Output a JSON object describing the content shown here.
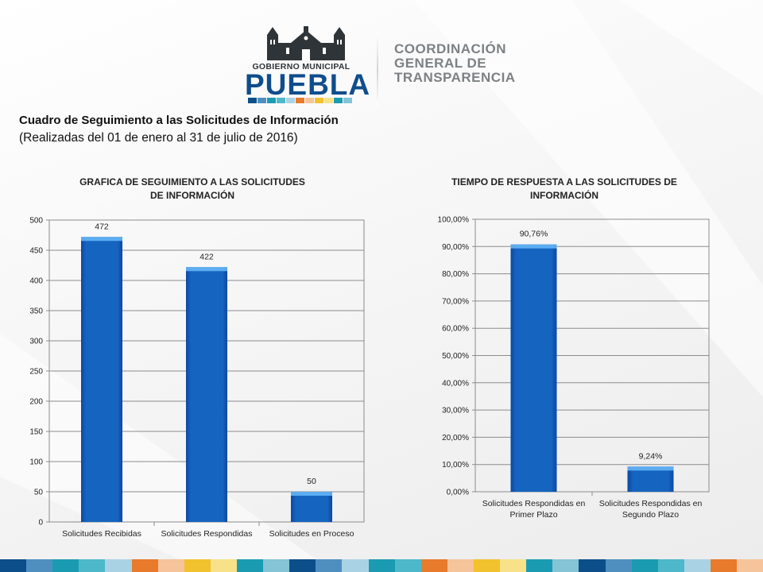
{
  "header": {
    "gov_label": "GOBIERNO MUNICIPAL",
    "brand": "PUEBLA",
    "org_lines": [
      "COORDINACIÓN",
      "GENERAL DE",
      "TRANSPARENCIA"
    ],
    "palette": [
      "#0b4e8a",
      "#4f8fc0",
      "#1a9bb2",
      "#4db8c9",
      "#a9d3e4",
      "#e87a2b",
      "#f5c49a",
      "#f2c12e",
      "#f7e28a",
      "#1a9bb2",
      "#84c4d6"
    ]
  },
  "page": {
    "title": "Cuadro de Seguimiento a las Solicitudes de Información",
    "subtitle": "(Realizadas del 01 de enero al 31 de julio de 2016)"
  },
  "chart_data": [
    {
      "type": "bar",
      "title_lines": [
        "GRAFICA DE SEGUIMIENTO A LAS SOLICITUDES",
        "DE INFORMACIÓN"
      ],
      "categories": [
        [
          "Solicitudes Recibidas"
        ],
        [
          "Solicitudes Respondidas"
        ],
        [
          "Solicitudes en Proceso"
        ]
      ],
      "values": [
        472,
        422,
        50
      ],
      "value_labels": [
        "472",
        "422",
        "50"
      ],
      "ylim": [
        0,
        500
      ],
      "yticks": [
        0,
        50,
        100,
        150,
        200,
        250,
        300,
        350,
        400,
        450,
        500
      ],
      "ytick_labels": [
        "0",
        "50",
        "100",
        "150",
        "200",
        "250",
        "300",
        "350",
        "400",
        "450",
        "500"
      ],
      "grid": true,
      "bar_color": "#1565c0"
    },
    {
      "type": "bar",
      "title_lines": [
        "TIEMPO DE RESPUESTA A LAS SOLICITUDES DE",
        "INFORMACIÓN"
      ],
      "categories": [
        [
          "Solicitudes Respondidas en",
          "Primer Plazo"
        ],
        [
          "Solicitudes Respondidas en",
          "Segundo Plazo"
        ]
      ],
      "values": [
        90.76,
        9.24
      ],
      "value_labels": [
        "90,76%",
        "9,24%"
      ],
      "ylim": [
        0,
        100
      ],
      "yticks": [
        0,
        10,
        20,
        30,
        40,
        50,
        60,
        70,
        80,
        90,
        100
      ],
      "ytick_labels": [
        "0,00%",
        "10,00%",
        "20,00%",
        "30,00%",
        "40,00%",
        "50,00%",
        "60,00%",
        "70,00%",
        "80,00%",
        "90,00%",
        "100,00%"
      ],
      "grid": true,
      "bar_color": "#1565c0"
    }
  ],
  "footer": {
    "colors": [
      "#0b4e8a",
      "#4f8fc0",
      "#1a9bb2",
      "#4db8c9",
      "#a9d3e4",
      "#e87a2b",
      "#f5c49a",
      "#f2c12e",
      "#f7e28a",
      "#1a9bb2",
      "#84c4d6",
      "#0b4e8a",
      "#4f8fc0",
      "#a9d3e4",
      "#1a9bb2",
      "#4db8c9",
      "#e87a2b",
      "#f5c49a",
      "#f2c12e",
      "#f7e28a",
      "#1a9bb2",
      "#84c4d6",
      "#0b4e8a",
      "#4f8fc0",
      "#1a9bb2",
      "#4db8c9",
      "#a9d3e4",
      "#e87a2b",
      "#f5c49a"
    ]
  }
}
